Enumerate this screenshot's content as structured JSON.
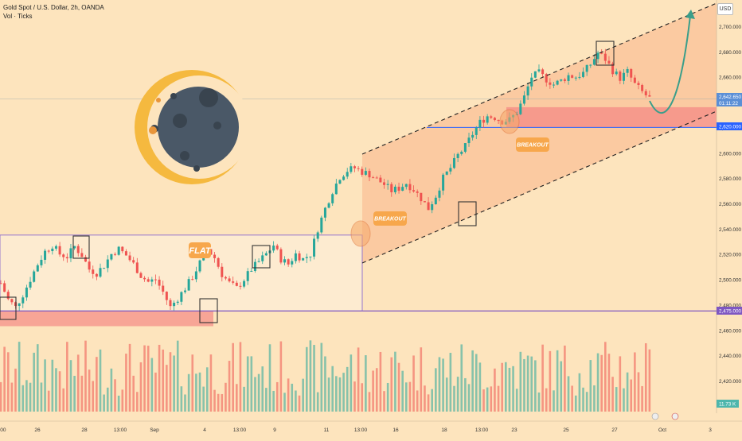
{
  "header": {
    "title": "Gold Spot / U.S. Dollar, 2h, OANDA",
    "subtitle": "Vol · Ticks"
  },
  "currency_label": "USD",
  "price_labels": {
    "current_price": "2,642.650",
    "countdown": "01:11:22",
    "resistance_price": "2,620.000",
    "support_price": "2,475.000",
    "volume_value": "11.73 K"
  },
  "annotations": {
    "flat": "FLAT",
    "breakout1": "BREAKOUT",
    "breakout2": "BREAKOUT"
  },
  "colors": {
    "background": "#fde4bd",
    "bull": "#26a69a",
    "bear": "#ef5350",
    "channel_fill": "#f9b48a",
    "zone_fill": "#f48a86",
    "resistance_line": "#2962ff",
    "support_line": "#7e57c2",
    "label_fill": "#f7a74c",
    "forecast_arrow": "#3a9e8a"
  },
  "chart_data": {
    "type": "candlestick",
    "title": "Gold Spot / U.S. Dollar, 2h, OANDA",
    "y_axis": {
      "min": 2400,
      "max": 2720,
      "ticks": [
        "2,700.000",
        "2,680.000",
        "2,660.000",
        "2,620.000",
        "2,600.000",
        "2,580.000",
        "2,560.000",
        "2,540.000",
        "2,520.000",
        "2,500.000",
        "2,480.000",
        "2,460.000",
        "2,440.000",
        "2,420.000"
      ]
    },
    "x_axis": {
      "ticks": [
        ":00",
        "26",
        "28",
        "13:00",
        "Sep",
        "4",
        "13:00",
        "9",
        "11",
        "13:00",
        "16",
        "18",
        "13:00",
        "23",
        "25",
        "27",
        "Oct",
        "3"
      ]
    },
    "close_path": [
      [
        0,
        2497
      ],
      [
        2,
        2484
      ],
      [
        4,
        2478
      ],
      [
        6,
        2488
      ],
      [
        8,
        2500
      ],
      [
        10,
        2512
      ],
      [
        12,
        2522
      ],
      [
        14,
        2527
      ],
      [
        16,
        2520
      ],
      [
        18,
        2518
      ],
      [
        20,
        2526
      ],
      [
        22,
        2519
      ],
      [
        24,
        2508
      ],
      [
        26,
        2505
      ],
      [
        28,
        2511
      ],
      [
        30,
        2520
      ],
      [
        32,
        2524
      ],
      [
        34,
        2519
      ],
      [
        36,
        2512
      ],
      [
        38,
        2503
      ],
      [
        40,
        2498
      ],
      [
        42,
        2500
      ],
      [
        44,
        2490
      ],
      [
        46,
        2478
      ],
      [
        48,
        2485
      ],
      [
        50,
        2493
      ],
      [
        52,
        2502
      ],
      [
        54,
        2513
      ],
      [
        56,
        2524
      ],
      [
        58,
        2517
      ],
      [
        60,
        2504
      ],
      [
        62,
        2497
      ],
      [
        64,
        2493
      ],
      [
        66,
        2500
      ],
      [
        68,
        2508
      ],
      [
        70,
        2514
      ],
      [
        72,
        2520
      ],
      [
        74,
        2527
      ],
      [
        76,
        2516
      ],
      [
        78,
        2512
      ],
      [
        80,
        2520
      ],
      [
        82,
        2516
      ],
      [
        84,
        2520
      ],
      [
        86,
        2540
      ],
      [
        88,
        2556
      ],
      [
        90,
        2570
      ],
      [
        92,
        2581
      ],
      [
        94,
        2586
      ],
      [
        96,
        2588
      ],
      [
        98,
        2585
      ],
      [
        100,
        2583
      ],
      [
        102,
        2579
      ],
      [
        104,
        2575
      ],
      [
        106,
        2570
      ],
      [
        108,
        2572
      ],
      [
        110,
        2576
      ],
      [
        112,
        2571
      ],
      [
        114,
        2564
      ],
      [
        116,
        2556
      ],
      [
        118,
        2566
      ],
      [
        120,
        2580
      ],
      [
        122,
        2588
      ],
      [
        124,
        2598
      ],
      [
        126,
        2605
      ],
      [
        128,
        2615
      ],
      [
        130,
        2624
      ],
      [
        132,
        2629
      ],
      [
        134,
        2628
      ],
      [
        136,
        2625
      ],
      [
        138,
        2626
      ],
      [
        140,
        2632
      ],
      [
        142,
        2644
      ],
      [
        144,
        2660
      ],
      [
        146,
        2663
      ],
      [
        148,
        2658
      ],
      [
        150,
        2654
      ],
      [
        152,
        2657
      ],
      [
        154,
        2661
      ],
      [
        156,
        2660
      ],
      [
        158,
        2663
      ],
      [
        160,
        2670
      ],
      [
        162,
        2679
      ],
      [
        164,
        2674
      ],
      [
        166,
        2665
      ],
      [
        168,
        2659
      ],
      [
        170,
        2664
      ],
      [
        172,
        2654
      ],
      [
        174,
        2648
      ],
      [
        176,
        2643
      ]
    ],
    "forecast_path": [
      [
        2720,
        2638
      ],
      [
        2780,
        2625
      ],
      [
        2830,
        2645
      ],
      [
        2870,
        2715
      ]
    ],
    "resistance_zone": [
      2620,
      2636
    ],
    "support_zone": [
      2463,
      2475
    ],
    "flat_range": [
      2475,
      2535
    ],
    "volume_note": "bull/bear volume histogram below price"
  }
}
